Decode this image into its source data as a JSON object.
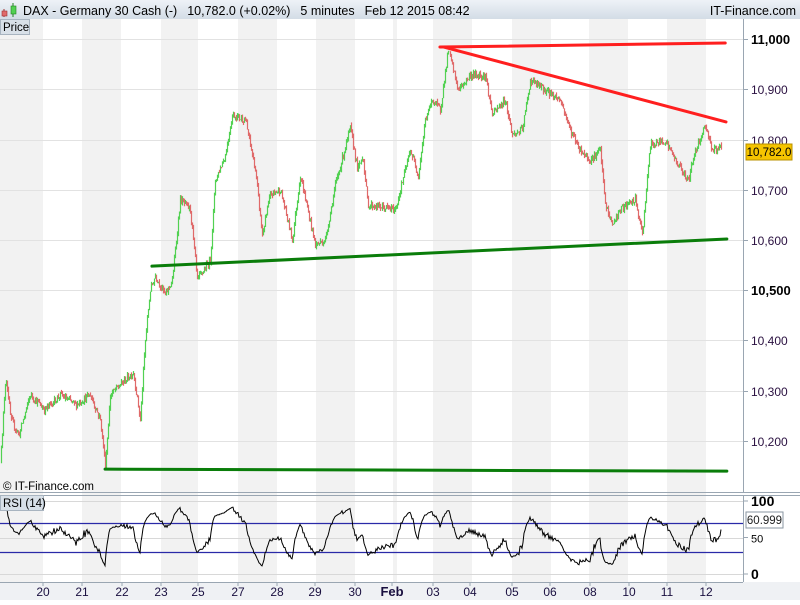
{
  "header": {
    "instrument": "DAX - Germany 30 Cash (-)",
    "quote": "10,782.0 (+0.02%)",
    "interval": "5 minutes",
    "datetime": "Feb 12 2015 08:42",
    "brand": "IT-Finance.com",
    "logo_icon": "candlestick-icon"
  },
  "price_panel": {
    "label": "Price",
    "watermark": "© IT-Finance.com"
  },
  "rsi_panel": {
    "label": "RSI (14)",
    "current_value": "60.999"
  },
  "colors": {
    "up": "#52d152",
    "down": "#e06a6a",
    "resistance": "#ff1f1f",
    "support": "#0a7d0a",
    "rsi_bands": "#2a2aa8",
    "price_tag": "#f5c400"
  },
  "chart_data": [
    {
      "type": "candlestick",
      "title": "DAX - Germany 30 Cash (-)",
      "ylim": [
        10100,
        11005
      ],
      "y_ticks": [
        "11,000",
        "10,900",
        "10,800",
        "10,700",
        "10,600",
        "10,500",
        "10,400",
        "10,300",
        "10,200"
      ],
      "y_tick_values": [
        11000,
        10900,
        10800,
        10700,
        10600,
        10500,
        10400,
        10300,
        10200
      ],
      "x_ticks": [
        "20",
        "21",
        "22",
        "23",
        "25",
        "27",
        "28",
        "29",
        "30",
        "Feb",
        "03",
        "04",
        "05",
        "06",
        "08",
        "10",
        "11",
        "12"
      ],
      "x_tick_dates": [
        "01-20",
        "01-21",
        "01-22",
        "01-23",
        "01-25",
        "01-27",
        "01-28",
        "01-29",
        "01-30",
        "02-01",
        "02-03",
        "02-04",
        "02-05",
        "02-06",
        "02-08",
        "02-10",
        "02-11",
        "02-12"
      ],
      "grid": true,
      "last_price": "10,782.0",
      "price_path": [
        [
          "01-19 00:00",
          10282
        ],
        [
          "01-19 01:00",
          10331
        ],
        [
          "01-19 04:00",
          10242
        ],
        [
          "01-19 09:00",
          10212
        ],
        [
          "01-19 16:00",
          10292
        ],
        [
          "01-20 01:00",
          10262
        ],
        [
          "01-20 10:30",
          10292
        ],
        [
          "01-20 19:40",
          10272
        ],
        [
          "01-21 04:50",
          10292
        ],
        [
          "01-21 10:50",
          10242
        ],
        [
          "01-21 13:50",
          10152
        ],
        [
          "01-21 16:50",
          10292
        ],
        [
          "01-21 22:50",
          10312
        ],
        [
          "01-22 06:50",
          10337
        ],
        [
          "01-22 11:05",
          10242
        ],
        [
          "01-22 14:10",
          10401
        ],
        [
          "01-22 17:10",
          10500
        ],
        [
          "01-22 20:20",
          10530
        ],
        [
          "01-23 05:10",
          10490
        ],
        [
          "01-23 14:15",
          10520
        ],
        [
          "01-24 00:40",
          10680
        ],
        [
          "01-24 13:40",
          10660
        ],
        [
          "01-24 22:40",
          10520
        ],
        [
          "01-25 14:25",
          10560
        ],
        [
          "01-25 20:25",
          10719
        ],
        [
          "01-26 08:25",
          10769
        ],
        [
          "01-26 16:50",
          10849
        ],
        [
          "01-27 04:20",
          10839
        ],
        [
          "01-27 10:30",
          10739
        ],
        [
          "01-27 14:45",
          10610
        ],
        [
          "01-27 19:40",
          10690
        ],
        [
          "01-28 01:55",
          10700
        ],
        [
          "01-28 09:30",
          10600
        ],
        [
          "01-28 14:30",
          10729
        ],
        [
          "01-29 00:00",
          10590
        ],
        [
          "01-29 06:00",
          10600
        ],
        [
          "01-29 12:00",
          10709
        ],
        [
          "01-29 21:00",
          10823
        ],
        [
          "01-30 03:15",
          10739
        ],
        [
          "01-30 09:45",
          10769
        ],
        [
          "01-30 16:15",
          10670
        ],
        [
          "02-01 03:30",
          10660
        ],
        [
          "02-01 21:05",
          10779
        ],
        [
          "02-02 06:25",
          10729
        ],
        [
          "02-02 14:40",
          10839
        ],
        [
          "02-02 22:50",
          10879
        ],
        [
          "02-03 04:30",
          10859
        ],
        [
          "02-03 09:45",
          10978
        ],
        [
          "02-03 16:15",
          10898
        ],
        [
          "02-04 00:00",
          10928
        ],
        [
          "02-04 08:35",
          10928
        ],
        [
          "02-04 12:35",
          10849
        ],
        [
          "02-04 20:00",
          10879
        ],
        [
          "02-05 00:00",
          10809
        ],
        [
          "02-05 06:20",
          10819
        ],
        [
          "02-05 11:25",
          10918
        ],
        [
          "02-05 20:50",
          10898
        ],
        [
          "02-06 12:00",
          10879
        ],
        [
          "02-07 00:00",
          10819
        ],
        [
          "02-07 12:00",
          10779
        ],
        [
          "02-08 00:00",
          10759
        ],
        [
          "02-08 12:20",
          10779
        ],
        [
          "02-08 18:30",
          10670
        ],
        [
          "02-09 03:05",
          10630
        ],
        [
          "02-09 12:55",
          10660
        ],
        [
          "02-10 03:50",
          10680
        ],
        [
          "02-10 08:10",
          10610
        ],
        [
          "02-10 13:15",
          10789
        ],
        [
          "02-10 22:40",
          10799
        ],
        [
          "02-11 04:55",
          10759
        ],
        [
          "02-11 12:55",
          10719
        ],
        [
          "02-11 17:15",
          10779
        ],
        [
          "02-11 23:25",
          10829
        ],
        [
          "02-12 03:40",
          10779
        ],
        [
          "02-12 08:40",
          10782
        ]
      ],
      "trend_lines": [
        {
          "kind": "resistance",
          "from": [
            "02-03 04:30",
            10984
          ],
          "to": [
            "02-12 11:50",
            10992
          ]
        },
        {
          "kind": "resistance",
          "from": [
            "02-03 07:00",
            10984
          ],
          "to": [
            "02-12 12:20",
            10835
          ]
        },
        {
          "kind": "support",
          "from": [
            "01-22 18:25",
            10548
          ],
          "to": [
            "02-12 12:50",
            10602
          ]
        },
        {
          "kind": "support",
          "from": [
            "01-21 13:50",
            10144
          ],
          "to": [
            "02-12 12:50",
            10140
          ]
        }
      ]
    },
    {
      "type": "line",
      "title": "RSI (14)",
      "ylim": [
        0,
        100
      ],
      "y_ticks": [
        "100",
        "50",
        "0"
      ],
      "y_tick_values": [
        100,
        50,
        0
      ],
      "bands": [
        30,
        70
      ],
      "last_value": 60.999
    }
  ]
}
